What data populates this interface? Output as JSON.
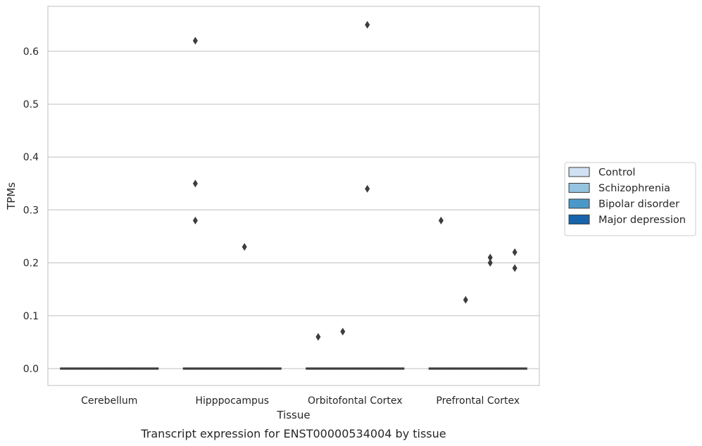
{
  "chart_data": {
    "type": "box",
    "caption": "Transcript expression for ENST00000534004 by tissue",
    "xlabel": "Tissue",
    "ylabel": "TPMs",
    "ylim": [
      -0.032,
      0.685
    ],
    "yticks": [
      0.0,
      0.1,
      0.2,
      0.3,
      0.4,
      0.5,
      0.6
    ],
    "ytick_labels": [
      "0.0",
      "0.1",
      "0.2",
      "0.3",
      "0.4",
      "0.5",
      "0.6"
    ],
    "grid": "horizontal",
    "legend_position": "right",
    "categories": [
      "Cerebellum",
      "Hipppocampus",
      "Orbitofontal Cortex",
      "Prefrontal Cortex"
    ],
    "series": [
      {
        "name": "Control",
        "color": "#d0e1f2",
        "boxes": [
          {
            "category": "Cerebellum",
            "median": 0.0,
            "q1": 0.0,
            "q3": 0.0,
            "outliers": []
          },
          {
            "category": "Hipppocampus",
            "median": 0.0,
            "q1": 0.0,
            "q3": 0.0,
            "outliers": [
              0.62,
              0.35,
              0.28
            ]
          },
          {
            "category": "Orbitofontal Cortex",
            "median": 0.0,
            "q1": 0.0,
            "q3": 0.0,
            "outliers": [
              0.06
            ]
          },
          {
            "category": "Prefrontal Cortex",
            "median": 0.0,
            "q1": 0.0,
            "q3": 0.0,
            "outliers": [
              0.28
            ]
          }
        ]
      },
      {
        "name": "Schizophrenia",
        "color": "#94c4df",
        "boxes": [
          {
            "category": "Cerebellum",
            "median": 0.0,
            "q1": 0.0,
            "q3": 0.0,
            "outliers": []
          },
          {
            "category": "Hipppocampus",
            "median": 0.0,
            "q1": 0.0,
            "q3": 0.0,
            "outliers": []
          },
          {
            "category": "Orbitofontal Cortex",
            "median": 0.0,
            "q1": 0.0,
            "q3": 0.0,
            "outliers": [
              0.07
            ]
          },
          {
            "category": "Prefrontal Cortex",
            "median": 0.0,
            "q1": 0.0,
            "q3": 0.0,
            "outliers": [
              0.13
            ]
          }
        ]
      },
      {
        "name": "Bipolar disorder",
        "color": "#4a98c9",
        "boxes": [
          {
            "category": "Cerebellum",
            "median": 0.0,
            "q1": 0.0,
            "q3": 0.0,
            "outliers": []
          },
          {
            "category": "Hipppocampus",
            "median": 0.0,
            "q1": 0.0,
            "q3": 0.0,
            "outliers": [
              0.23
            ]
          },
          {
            "category": "Orbitofontal Cortex",
            "median": 0.0,
            "q1": 0.0,
            "q3": 0.0,
            "outliers": [
              0.65,
              0.34
            ]
          },
          {
            "category": "Prefrontal Cortex",
            "median": 0.0,
            "q1": 0.0,
            "q3": 0.0,
            "outliers": [
              0.21,
              0.2
            ]
          }
        ]
      },
      {
        "name": "Major depression",
        "color": "#1764ab",
        "boxes": [
          {
            "category": "Cerebellum",
            "median": 0.0,
            "q1": 0.0,
            "q3": 0.0,
            "outliers": []
          },
          {
            "category": "Hipppocampus",
            "median": 0.0,
            "q1": 0.0,
            "q3": 0.0,
            "outliers": []
          },
          {
            "category": "Orbitofontal Cortex",
            "median": 0.0,
            "q1": 0.0,
            "q3": 0.0,
            "outliers": []
          },
          {
            "category": "Prefrontal Cortex",
            "median": 0.0,
            "q1": 0.0,
            "q3": 0.0,
            "outliers": [
              0.22,
              0.19
            ]
          }
        ]
      }
    ]
  }
}
